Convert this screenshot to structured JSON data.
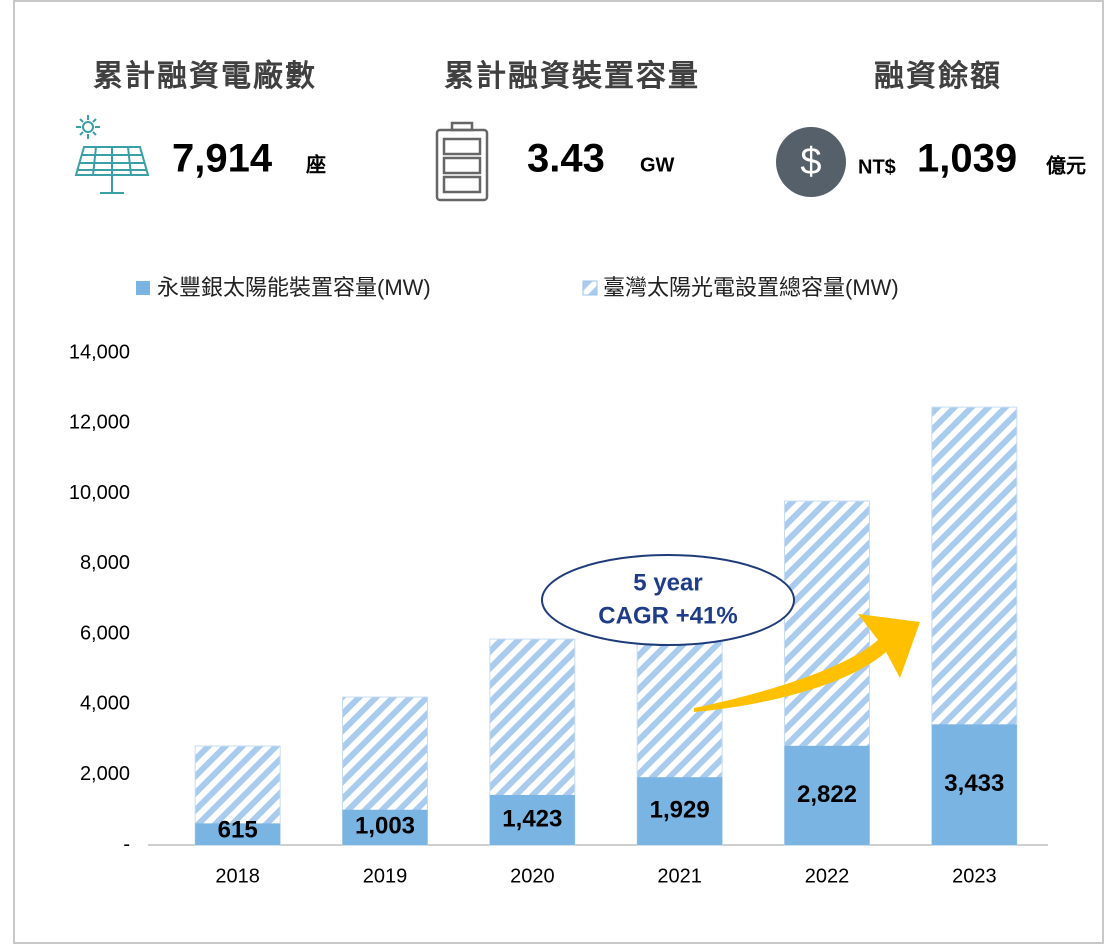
{
  "kpis": [
    {
      "label": "累計融資電廠數",
      "value": "7,914",
      "unit": "座"
    },
    {
      "label": "累計融資裝置容量",
      "value": "3.43",
      "unit": "GW"
    },
    {
      "label": "融資餘額",
      "prefix": "NT$",
      "value": "1,039",
      "unit": "億元"
    }
  ],
  "chart_data": {
    "type": "bar",
    "categories": [
      "2018",
      "2019",
      "2020",
      "2021",
      "2022",
      "2023"
    ],
    "series": [
      {
        "name": "臺灣太陽光電設置總容量(MW)",
        "color": "#9cc3ea",
        "hatched": true,
        "values": [
          2816,
          4210,
          5860,
          7700,
          9787,
          12460
        ]
      },
      {
        "name": "永豐銀太陽能裝置容量(MW)",
        "color": "#7ab4e3",
        "values": [
          615,
          1003,
          1423,
          1929,
          2822,
          3433
        ],
        "value_labels": [
          "615",
          "1,003",
          "1,423",
          "1,929",
          "2,822",
          "3,433"
        ]
      }
    ],
    "ylim": [
      0,
      14000
    ],
    "yticks": [
      {
        "value": 0,
        "label": "-"
      },
      {
        "value": 2000,
        "label": "2,000"
      },
      {
        "value": 4000,
        "label": "4,000"
      },
      {
        "value": 6000,
        "label": "6,000"
      },
      {
        "value": 8000,
        "label": "8,000"
      },
      {
        "value": 10000,
        "label": "10,000"
      },
      {
        "value": 12000,
        "label": "12,000"
      },
      {
        "value": 14000,
        "label": "14,000"
      }
    ],
    "annotation": [
      "5 year",
      "CAGR +41%"
    ]
  }
}
